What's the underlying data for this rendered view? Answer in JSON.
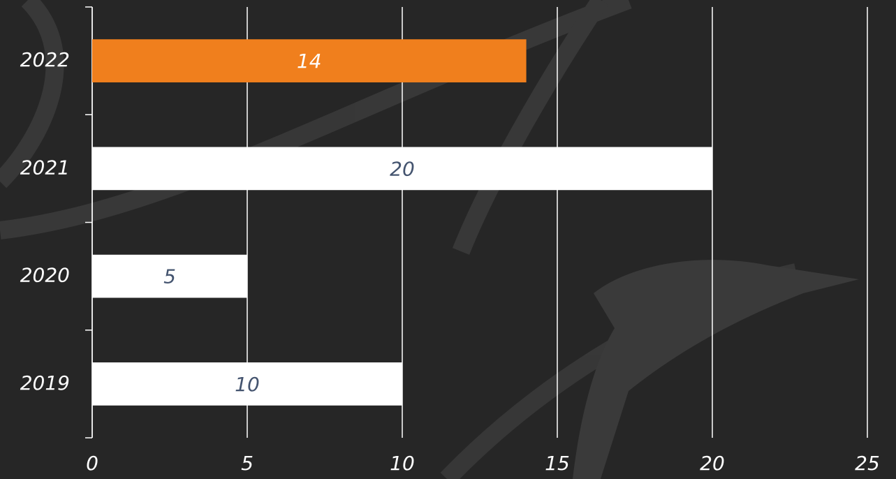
{
  "chart_data": {
    "type": "bar",
    "orientation": "horizontal",
    "categories": [
      "2022",
      "2021",
      "2020",
      "2019"
    ],
    "values": [
      14,
      20,
      5,
      10
    ],
    "colors": [
      "#f07f1d",
      "#ffffff",
      "#ffffff",
      "#ffffff"
    ],
    "label_colors": [
      "#ffffff",
      "#44546f",
      "#44546f",
      "#44546f"
    ],
    "xlim": [
      0,
      25
    ],
    "xticks": [
      0,
      5,
      10,
      15,
      20,
      25
    ],
    "grid": true
  }
}
